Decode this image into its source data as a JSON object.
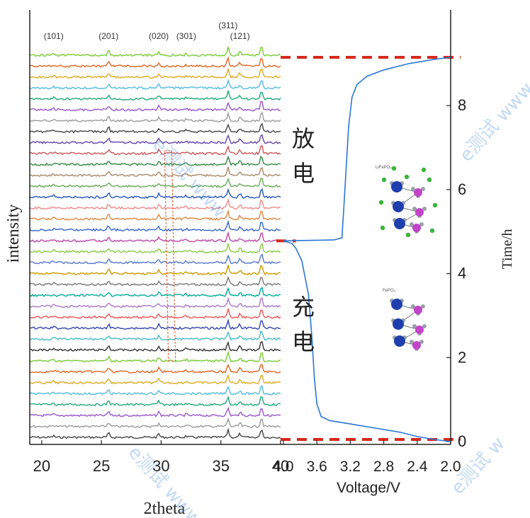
{
  "chart_data": [
    {
      "type": "line",
      "panel": "xrd",
      "xlabel": "2theta",
      "ylabel": "intensity",
      "xlim": [
        19,
        40
      ],
      "x_ticks": [
        20,
        25,
        30,
        35,
        40
      ],
      "n_patterns": 36,
      "peaks": [
        {
          "label": "(101)",
          "x": 21.0
        },
        {
          "label": "(201)",
          "x": 25.6
        },
        {
          "label": "(020)",
          "x": 29.8
        },
        {
          "label": "(301)",
          "x": 32.1
        },
        {
          "label": "(311)",
          "x": 35.6
        },
        {
          "label": "(121)",
          "x": 36.6
        }
      ],
      "extra_peak_x": 38.4,
      "series_colors": [
        "#444444",
        "#9a9a9a",
        "#9955cc",
        "#22aa77",
        "#55bbdd",
        "#ddaa22",
        "#dd6622",
        "#77cc33",
        "#333333",
        "#44bbcc",
        "#3344aa",
        "#ee5555",
        "#aa77cc",
        "#00aa99",
        "#777777",
        "#cc9900",
        "#5577cc",
        "#88cc44",
        "#bb44aa",
        "#3366cc",
        "#dd8844",
        "#ee8888",
        "#2255bb",
        "#66aa55",
        "#aa8866",
        "#338844",
        "#cc5555",
        "#6644aa"
      ]
    },
    {
      "type": "line",
      "panel": "voltage-time",
      "xlabel": "Voltage/V",
      "ylabel": "Time/h",
      "xlim": [
        4.0,
        2.0
      ],
      "ylim": [
        0,
        9.2
      ],
      "x_ticks": [
        "4.0",
        "3.6",
        "3.2",
        "2.8",
        "2.4",
        "2.0"
      ],
      "y_ticks": [
        0,
        2,
        4,
        6,
        8
      ],
      "series": [
        {
          "color": "#2a78d4",
          "x": [
            2.0,
            2.2,
            2.4,
            2.6,
            2.9,
            3.2,
            3.45,
            3.55,
            3.6,
            3.63,
            3.66,
            3.7,
            3.78,
            3.85,
            3.9,
            4.0,
            3.4,
            3.3,
            3.28,
            3.25,
            3.22,
            3.18,
            3.12,
            3.0,
            2.8,
            2.5,
            2.2,
            2.0
          ],
          "y": [
            0.0,
            0.05,
            0.12,
            0.22,
            0.32,
            0.42,
            0.5,
            0.6,
            0.9,
            1.5,
            2.5,
            3.5,
            4.3,
            4.6,
            4.72,
            4.78,
            4.8,
            4.85,
            5.5,
            6.5,
            7.5,
            8.2,
            8.5,
            8.7,
            8.85,
            9.0,
            9.1,
            9.15
          ]
        }
      ],
      "reference_lines_y": [
        0.05,
        4.78,
        9.15
      ],
      "reference_line_color": "#d42a1c",
      "annotations": {
        "discharge": "放电",
        "charge": "充电"
      }
    }
  ],
  "labels": {
    "xrd_xlabel": "2theta",
    "xrd_ylabel": "intensity",
    "volt_xlabel": "Voltage/V",
    "volt_ylabel": "Time/h",
    "discharge_char1": "放",
    "discharge_char2": "电",
    "charge_char1": "充",
    "charge_char2": "电",
    "struct_top_label": "LiFePO₄",
    "struct_bottom_label": "FePO₄",
    "watermark_text": "e测试 www",
    "watermark_text_2": "e测试 w"
  }
}
